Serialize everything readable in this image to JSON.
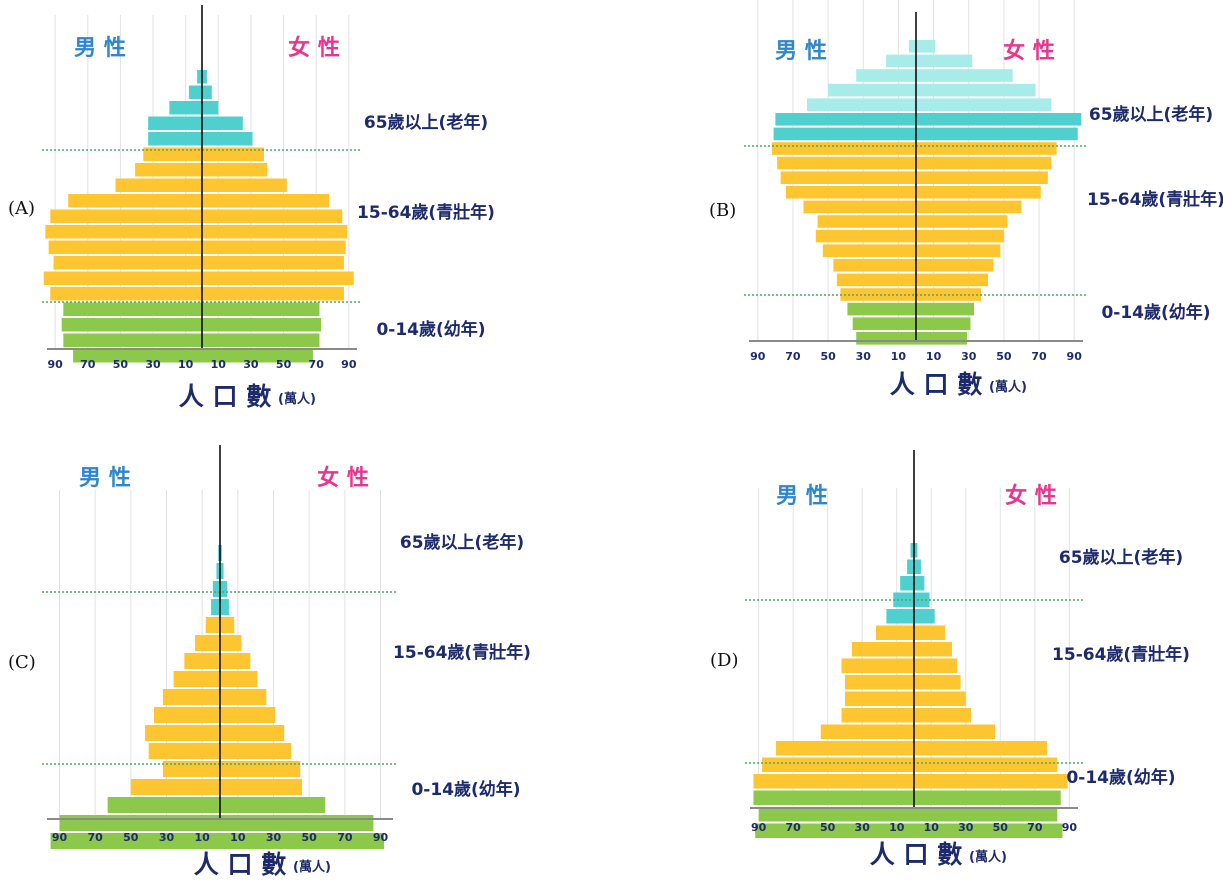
{
  "options": [
    {
      "key": "A",
      "label": "(A)"
    },
    {
      "key": "B",
      "label": "(B)"
    },
    {
      "key": "C",
      "label": "(C)"
    },
    {
      "key": "D",
      "label": "(D)"
    }
  ],
  "common": {
    "male_label": "男 性",
    "female_label": "女 性",
    "group_labels": [
      "65歲以上(老年)",
      "15-64歲(青壯年)",
      "0-14歲(幼年)"
    ],
    "x_title": "人 口 數",
    "x_unit": "(萬人)",
    "x_tick_labels": [
      "90",
      "70",
      "50",
      "30",
      "10",
      "10",
      "30",
      "50",
      "70",
      "90"
    ],
    "colors": {
      "old": "#4fd0cf",
      "old_light": "#a8ece9",
      "working": "#fdc630",
      "young": "#8cc84a",
      "divider": "#4aa86a",
      "axis": "#000000"
    }
  },
  "chart_data": [
    {
      "type": "bar",
      "subtype": "population-pyramid",
      "key": "A",
      "xlim": [
        -95,
        95
      ],
      "bars_top_to_bottom": [
        {
          "group": "old",
          "male": 3,
          "female": 3
        },
        {
          "group": "old",
          "male": 8,
          "female": 6
        },
        {
          "group": "old",
          "male": 20,
          "female": 10
        },
        {
          "group": "old",
          "male": 33,
          "female": 25
        },
        {
          "group": "old",
          "male": 33,
          "female": 31
        },
        {
          "group": "working",
          "male": 36,
          "female": 38
        },
        {
          "group": "working",
          "male": 41,
          "female": 40
        },
        {
          "group": "working",
          "male": 53,
          "female": 52
        },
        {
          "group": "working",
          "male": 82,
          "female": 78
        },
        {
          "group": "working",
          "male": 93,
          "female": 86
        },
        {
          "group": "working",
          "male": 96,
          "female": 89
        },
        {
          "group": "working",
          "male": 94,
          "female": 88
        },
        {
          "group": "working",
          "male": 91,
          "female": 87
        },
        {
          "group": "working",
          "male": 97,
          "female": 93
        },
        {
          "group": "working",
          "male": 93,
          "female": 87
        },
        {
          "group": "young",
          "male": 85,
          "female": 72
        },
        {
          "group": "young",
          "male": 86,
          "female": 73
        },
        {
          "group": "young",
          "male": 85,
          "female": 72
        },
        {
          "group": "young",
          "male": 79,
          "female": 68
        }
      ]
    },
    {
      "type": "bar",
      "subtype": "population-pyramid",
      "key": "B",
      "xlim": [
        -95,
        95
      ],
      "bars_top_to_bottom": [
        {
          "group": "old_light",
          "male": 4,
          "female": 11
        },
        {
          "group": "old_light",
          "male": 17,
          "female": 32
        },
        {
          "group": "old_light",
          "male": 34,
          "female": 55
        },
        {
          "group": "old_light",
          "male": 50,
          "female": 68
        },
        {
          "group": "old_light",
          "male": 62,
          "female": 77
        },
        {
          "group": "old",
          "male": 80,
          "female": 94
        },
        {
          "group": "old",
          "male": 81,
          "female": 92
        },
        {
          "group": "working",
          "male": 82,
          "female": 80
        },
        {
          "group": "working",
          "male": 79,
          "female": 77
        },
        {
          "group": "working",
          "male": 77,
          "female": 75
        },
        {
          "group": "working",
          "male": 74,
          "female": 71
        },
        {
          "group": "working",
          "male": 64,
          "female": 60
        },
        {
          "group": "working",
          "male": 56,
          "female": 52
        },
        {
          "group": "working",
          "male": 57,
          "female": 50
        },
        {
          "group": "working",
          "male": 53,
          "female": 48
        },
        {
          "group": "working",
          "male": 47,
          "female": 44
        },
        {
          "group": "working",
          "male": 45,
          "female": 41
        },
        {
          "group": "working",
          "male": 43,
          "female": 37
        },
        {
          "group": "young",
          "male": 39,
          "female": 33
        },
        {
          "group": "young",
          "male": 36,
          "female": 31
        },
        {
          "group": "young",
          "male": 34,
          "female": 29
        }
      ]
    },
    {
      "type": "bar",
      "subtype": "population-pyramid",
      "key": "C",
      "xlim": [
        -97,
        97
      ],
      "bars_top_to_bottom": [
        {
          "group": "old",
          "male": 1,
          "female": 1
        },
        {
          "group": "old",
          "male": 2,
          "female": 2
        },
        {
          "group": "old",
          "male": 4,
          "female": 4
        },
        {
          "group": "old",
          "male": 5,
          "female": 5
        },
        {
          "group": "working",
          "male": 8,
          "female": 8
        },
        {
          "group": "working",
          "male": 14,
          "female": 12
        },
        {
          "group": "working",
          "male": 20,
          "female": 17
        },
        {
          "group": "working",
          "male": 26,
          "female": 21
        },
        {
          "group": "working",
          "male": 32,
          "female": 26
        },
        {
          "group": "working",
          "male": 37,
          "female": 31
        },
        {
          "group": "working",
          "male": 42,
          "female": 36
        },
        {
          "group": "working",
          "male": 40,
          "female": 40
        },
        {
          "group": "working",
          "male": 32,
          "female": 45
        },
        {
          "group": "working",
          "male": 50,
          "female": 46
        },
        {
          "group": "young",
          "male": 63,
          "female": 59
        },
        {
          "group": "young",
          "male": 90,
          "female": 86
        },
        {
          "group": "young",
          "male": 95,
          "female": 92
        }
      ]
    },
    {
      "type": "bar",
      "subtype": "population-pyramid",
      "key": "D",
      "xlim": [
        -95,
        95
      ],
      "bars_top_to_bottom": [
        {
          "group": "old",
          "male": 2,
          "female": 2
        },
        {
          "group": "old",
          "male": 4,
          "female": 4
        },
        {
          "group": "old",
          "male": 8,
          "female": 6
        },
        {
          "group": "old",
          "male": 12,
          "female": 9
        },
        {
          "group": "old",
          "male": 16,
          "female": 12
        },
        {
          "group": "working",
          "male": 22,
          "female": 18
        },
        {
          "group": "working",
          "male": 36,
          "female": 22
        },
        {
          "group": "working",
          "male": 42,
          "female": 25
        },
        {
          "group": "working",
          "male": 40,
          "female": 27
        },
        {
          "group": "working",
          "male": 40,
          "female": 30
        },
        {
          "group": "working",
          "male": 42,
          "female": 33
        },
        {
          "group": "working",
          "male": 54,
          "female": 47
        },
        {
          "group": "working",
          "male": 80,
          "female": 77
        },
        {
          "group": "working",
          "male": 88,
          "female": 83
        },
        {
          "group": "working",
          "male": 93,
          "female": 89
        },
        {
          "group": "young",
          "male": 93,
          "female": 85
        },
        {
          "group": "young",
          "male": 90,
          "female": 83
        },
        {
          "group": "young",
          "male": 92,
          "female": 86
        }
      ]
    }
  ]
}
